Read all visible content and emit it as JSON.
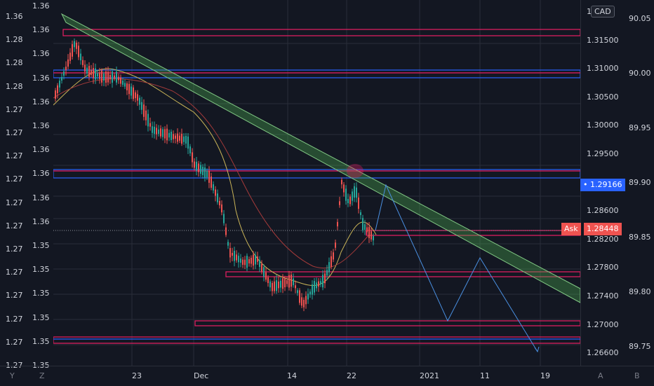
{
  "axis_left_outer": [
    "1.36",
    "1.28",
    "1.28",
    "1.28",
    "1.27",
    "1.27",
    "1.27",
    "1.27",
    "1.27",
    "1.27",
    "1.27",
    "1.27",
    "1.27",
    "1.27",
    "1.27",
    "1.27"
  ],
  "axis_left_inner": [
    "1.36",
    "1.36",
    "1.36",
    "1.36",
    "1.36",
    "1.36",
    "1.36",
    "1.36",
    "1.36",
    "1.36",
    "1.35",
    "1.35",
    "1.35",
    "1.35",
    "1.35",
    "1.35"
  ],
  "axis_right_main": [
    "1.32",
    "1.31500",
    "1.31000",
    "1.30500",
    "1.30000",
    "1.29500",
    "1.29000",
    "1.28600",
    "1.28200",
    "1.27800",
    "1.27400",
    "1.27000",
    "1.26600"
  ],
  "axis_right_far": [
    "90.05",
    "90.00",
    "89.95",
    "89.90",
    "89.85",
    "89.80",
    "89.75"
  ],
  "time_labels": [
    "23",
    "Dec",
    "14",
    "22",
    "2021",
    "11",
    "19"
  ],
  "currency_badge": "CAD",
  "price_tags": {
    "blue": "1.29166",
    "ask_label": "Ask",
    "ask_value": "1.28448"
  },
  "bottom_buttons": [
    "Y",
    "Z",
    "A",
    "B"
  ],
  "colors": {
    "bg": "#131722",
    "up": "#26a69a",
    "down": "#ef5350",
    "zone": "#e91e63",
    "zone_blue": "#2962ff",
    "trend": "#4caf50",
    "projection": "#4a90e2"
  }
}
